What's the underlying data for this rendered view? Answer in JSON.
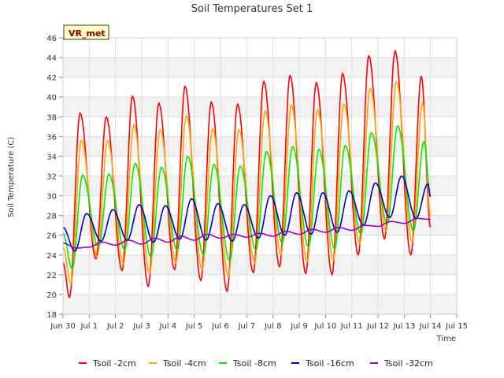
{
  "chart_data": {
    "type": "line",
    "title": "Soil Temperatures Set 1",
    "xlabel": "Time",
    "ylabel": "Soil Temperature (C)",
    "badge": "VR_met",
    "xlim": [
      0,
      15
    ],
    "ylim": [
      18,
      46
    ],
    "x_ticks": [
      {
        "label": "Jun 30",
        "value": 0
      },
      {
        "label": "Jul 1",
        "value": 1
      },
      {
        "label": "Jul 2",
        "value": 2
      },
      {
        "label": "Jul 3",
        "value": 3
      },
      {
        "label": "Jul 4",
        "value": 4
      },
      {
        "label": "Jul 5",
        "value": 5
      },
      {
        "label": "Jul 6",
        "value": 6
      },
      {
        "label": "Jul 7",
        "value": 7
      },
      {
        "label": "Jul 8",
        "value": 8
      },
      {
        "label": "Jul 9",
        "value": 9
      },
      {
        "label": "Jul 10",
        "value": 10
      },
      {
        "label": "Jul 11",
        "value": 11
      },
      {
        "label": "Jul 12",
        "value": 12
      },
      {
        "label": "Jul 13",
        "value": 13
      },
      {
        "label": "Jul 14",
        "value": 14
      },
      {
        "label": "Jul 15",
        "value": 15
      }
    ],
    "y_ticks": [
      "18",
      "20",
      "22",
      "24",
      "26",
      "28",
      "30",
      "32",
      "34",
      "36",
      "38",
      "40",
      "42",
      "44",
      "46"
    ],
    "grid": true,
    "legend_position": "bottom",
    "series": [
      {
        "name": "Tsoil -2cm",
        "color": "#ff0000",
        "points": [
          [
            0.0,
            23.2
          ],
          [
            0.25,
            19.7
          ],
          [
            0.65,
            38.4
          ],
          [
            1.25,
            23.6
          ],
          [
            1.65,
            38.0
          ],
          [
            2.25,
            22.4
          ],
          [
            2.65,
            40.1
          ],
          [
            3.25,
            20.8
          ],
          [
            3.65,
            39.4
          ],
          [
            4.25,
            22.5
          ],
          [
            4.65,
            41.1
          ],
          [
            5.25,
            21.4
          ],
          [
            5.65,
            39.5
          ],
          [
            6.25,
            20.3
          ],
          [
            6.65,
            39.3
          ],
          [
            7.25,
            22.2
          ],
          [
            7.65,
            41.6
          ],
          [
            8.25,
            22.8
          ],
          [
            8.65,
            42.2
          ],
          [
            9.25,
            22.1
          ],
          [
            9.65,
            41.5
          ],
          [
            10.25,
            22.0
          ],
          [
            10.65,
            42.4
          ],
          [
            11.25,
            24.0
          ],
          [
            11.65,
            44.2
          ],
          [
            12.25,
            25.6
          ],
          [
            12.65,
            44.7
          ],
          [
            13.25,
            24.0
          ],
          [
            13.65,
            42.1
          ],
          [
            14.0,
            26.8
          ]
        ]
      },
      {
        "name": "Tsoil -4cm",
        "color": "#ffa500",
        "points": [
          [
            0.0,
            24.8
          ],
          [
            0.3,
            21.1
          ],
          [
            0.7,
            35.6
          ],
          [
            1.3,
            23.8
          ],
          [
            1.7,
            35.6
          ],
          [
            2.3,
            23.1
          ],
          [
            2.7,
            37.2
          ],
          [
            3.3,
            22.1
          ],
          [
            3.7,
            36.7
          ],
          [
            4.3,
            23.2
          ],
          [
            4.7,
            38.1
          ],
          [
            5.3,
            22.5
          ],
          [
            5.7,
            36.8
          ],
          [
            6.3,
            21.8
          ],
          [
            6.7,
            36.7
          ],
          [
            7.3,
            23.2
          ],
          [
            7.7,
            38.6
          ],
          [
            8.3,
            24.0
          ],
          [
            8.7,
            39.2
          ],
          [
            9.3,
            23.3
          ],
          [
            9.7,
            38.7
          ],
          [
            10.3,
            23.4
          ],
          [
            10.7,
            39.3
          ],
          [
            11.3,
            25.1
          ],
          [
            11.7,
            40.9
          ],
          [
            12.3,
            26.4
          ],
          [
            12.7,
            41.6
          ],
          [
            13.3,
            25.3
          ],
          [
            13.7,
            39.4
          ],
          [
            14.0,
            28.0
          ]
        ]
      },
      {
        "name": "Tsoil -8cm",
        "color": "#00ee00",
        "points": [
          [
            0.0,
            26.2
          ],
          [
            0.35,
            22.6
          ],
          [
            0.75,
            32.1
          ],
          [
            1.35,
            24.8
          ],
          [
            1.75,
            32.2
          ],
          [
            2.35,
            24.5
          ],
          [
            2.75,
            33.3
          ],
          [
            3.35,
            23.8
          ],
          [
            3.75,
            32.9
          ],
          [
            4.35,
            24.5
          ],
          [
            4.75,
            34.0
          ],
          [
            5.35,
            24.0
          ],
          [
            5.75,
            33.2
          ],
          [
            6.35,
            23.4
          ],
          [
            6.75,
            33.0
          ],
          [
            7.35,
            24.5
          ],
          [
            7.75,
            34.5
          ],
          [
            8.35,
            25.2
          ],
          [
            8.75,
            35.0
          ],
          [
            9.35,
            24.8
          ],
          [
            9.75,
            34.7
          ],
          [
            10.35,
            24.6
          ],
          [
            10.75,
            35.1
          ],
          [
            11.35,
            26.1
          ],
          [
            11.75,
            36.4
          ],
          [
            12.35,
            27.1
          ],
          [
            12.75,
            37.1
          ],
          [
            13.35,
            26.4
          ],
          [
            13.75,
            35.5
          ],
          [
            14.0,
            30.0
          ]
        ]
      },
      {
        "name": "Tsoil -16cm",
        "color": "#0000cc",
        "points": [
          [
            0.0,
            26.8
          ],
          [
            0.45,
            24.4
          ],
          [
            0.9,
            28.2
          ],
          [
            1.45,
            25.4
          ],
          [
            1.9,
            28.6
          ],
          [
            2.45,
            25.5
          ],
          [
            2.9,
            29.1
          ],
          [
            3.45,
            25.3
          ],
          [
            3.9,
            29.0
          ],
          [
            4.45,
            25.6
          ],
          [
            4.9,
            29.7
          ],
          [
            5.45,
            25.5
          ],
          [
            5.9,
            29.2
          ],
          [
            6.45,
            25.4
          ],
          [
            6.9,
            29.1
          ],
          [
            7.45,
            25.7
          ],
          [
            7.9,
            30.0
          ],
          [
            8.45,
            26.0
          ],
          [
            8.9,
            30.3
          ],
          [
            9.45,
            26.1
          ],
          [
            9.9,
            30.3
          ],
          [
            10.45,
            26.3
          ],
          [
            10.9,
            30.5
          ],
          [
            11.45,
            27.0
          ],
          [
            11.9,
            31.3
          ],
          [
            12.45,
            27.8
          ],
          [
            12.9,
            32.0
          ],
          [
            13.45,
            27.7
          ],
          [
            13.9,
            31.2
          ],
          [
            14.0,
            29.9
          ]
        ]
      },
      {
        "name": "Tsoil -32cm",
        "color": "#9900cc",
        "points": [
          [
            0.0,
            25.2
          ],
          [
            0.5,
            24.7
          ],
          [
            1.0,
            24.8
          ],
          [
            1.5,
            25.3
          ],
          [
            2.0,
            25.0
          ],
          [
            2.5,
            25.5
          ],
          [
            3.0,
            25.1
          ],
          [
            3.5,
            25.7
          ],
          [
            4.0,
            25.3
          ],
          [
            4.5,
            25.9
          ],
          [
            5.0,
            25.5
          ],
          [
            5.5,
            26.1
          ],
          [
            6.0,
            25.7
          ],
          [
            6.5,
            26.1
          ],
          [
            7.0,
            25.8
          ],
          [
            7.5,
            26.2
          ],
          [
            8.0,
            25.9
          ],
          [
            8.5,
            26.4
          ],
          [
            9.0,
            26.1
          ],
          [
            9.5,
            26.6
          ],
          [
            10.0,
            26.3
          ],
          [
            10.5,
            26.8
          ],
          [
            11.0,
            26.5
          ],
          [
            11.5,
            27.0
          ],
          [
            12.0,
            26.9
          ],
          [
            12.5,
            27.4
          ],
          [
            13.0,
            27.2
          ],
          [
            13.5,
            27.7
          ],
          [
            14.0,
            27.6
          ]
        ]
      }
    ]
  }
}
